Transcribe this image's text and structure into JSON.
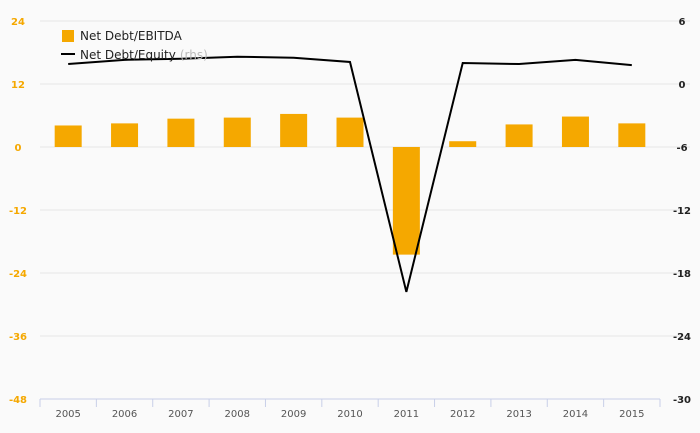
{
  "chart_data": {
    "type": "bar",
    "categories": [
      "2005",
      "2006",
      "2007",
      "2008",
      "2009",
      "2010",
      "2011",
      "2012",
      "2013",
      "2014",
      "2015"
    ],
    "series": [
      {
        "name": "Net Debt/EBITDA",
        "type": "bar",
        "axis": "left",
        "values": [
          4.1,
          4.5,
          5.4,
          5.6,
          6.3,
          5.6,
          -20.5,
          1.1,
          4.3,
          5.8,
          4.5
        ]
      },
      {
        "name": "Net Debt/Equity",
        "name_suffix": "(rhs)",
        "type": "line",
        "axis": "right",
        "values": [
          1.9,
          2.3,
          2.4,
          2.6,
          2.5,
          2.1,
          -19.8,
          2.0,
          1.9,
          2.3,
          1.8
        ]
      }
    ],
    "left_axis": {
      "ylim": [
        -48,
        24
      ],
      "ticks": [
        "24",
        "12",
        "0",
        "-12",
        "-24",
        "-36",
        "-48"
      ]
    },
    "right_axis": {
      "ylim": [
        -30,
        6
      ],
      "ticks": [
        "6",
        "0",
        "-6",
        "-12",
        "-18",
        "-24",
        "-30"
      ]
    },
    "grid": true,
    "legend_position": "top-left",
    "colors": {
      "bar": "#f5a800",
      "line": "#000000",
      "left_ticks": "#f5a800",
      "right_ticks": "#222222",
      "grid": "#e6e6e6"
    }
  }
}
